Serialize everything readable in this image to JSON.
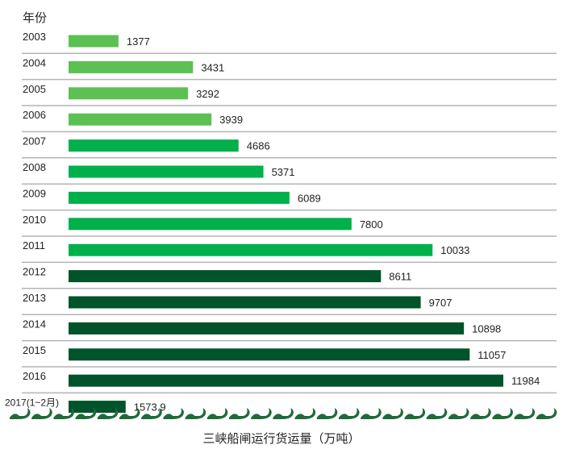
{
  "chart_data": {
    "type": "bar",
    "orientation": "horizontal",
    "title": "三峡船闸运行货运量（万吨）",
    "ylabel": "年份",
    "categories": [
      "2003",
      "2004",
      "2005",
      "2006",
      "2007",
      "2008",
      "2009",
      "2010",
      "2011",
      "2012",
      "2013",
      "2014",
      "2015",
      "2016",
      "2017(1~2月)"
    ],
    "values": [
      1377,
      3431,
      3292,
      3939,
      4686,
      5371,
      6089,
      7800,
      10033,
      8611,
      9707,
      10898,
      11057,
      11984,
      1573.9
    ],
    "value_labels": [
      "1377",
      "3431",
      "3292",
      "3939",
      "4686",
      "5371",
      "6089",
      "7800",
      "10033",
      "8611",
      "9707",
      "10898",
      "11057",
      "11984",
      "1573.9"
    ],
    "bar_colors": [
      "#5cc152",
      "#5cc152",
      "#5cc152",
      "#5cc152",
      "#00b04a",
      "#00b04a",
      "#00b04a",
      "#00b04a",
      "#00b04a",
      "#00532a",
      "#00532a",
      "#00532a",
      "#00532a",
      "#00532a",
      "#00532a"
    ],
    "xlim": [
      0,
      12000
    ],
    "grid": false,
    "row_separators": true,
    "legend": "none"
  },
  "colors": {
    "separator": "#b4b4b4",
    "wave": "#1e6b3a"
  }
}
